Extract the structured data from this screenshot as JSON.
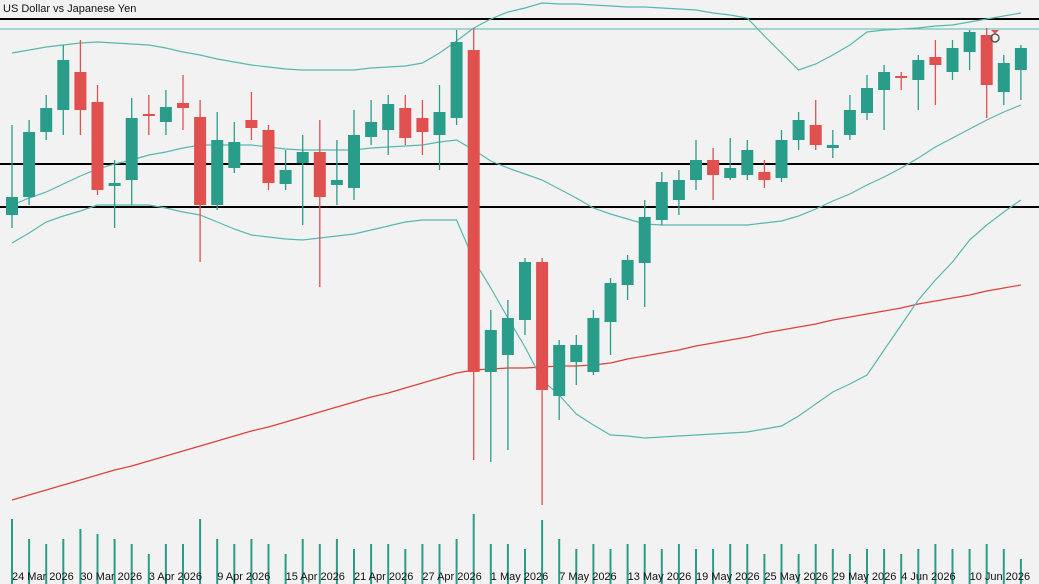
{
  "chart_data": {
    "type": "candlestick",
    "title": "US Dollar vs Japanese Yen",
    "categories": [
      "24 Mar 2026",
      null,
      null,
      null,
      "30 Mar 2026",
      null,
      null,
      null,
      "3 Apr 2026",
      null,
      null,
      null,
      "9 Apr 2026",
      null,
      null,
      null,
      "15 Apr 2026",
      null,
      null,
      null,
      "21 Apr 2026",
      null,
      null,
      null,
      "27 Apr 2026",
      null,
      null,
      null,
      "1 May 2026",
      null,
      null,
      null,
      "7 May 2026",
      null,
      null,
      null,
      "13 May 2026",
      null,
      null,
      null,
      "19 May 2026",
      null,
      null,
      null,
      "25 May 2026",
      null,
      null,
      null,
      "29 May 2026",
      null,
      null,
      null,
      "4 Jun 2026",
      null,
      null,
      null,
      "10 Jun 2026",
      null,
      null,
      null
    ],
    "open": [
      369,
      387,
      452,
      474,
      512,
      482,
      398,
      404,
      470,
      462,
      481,
      467,
      379,
      416,
      464,
      454,
      400,
      421,
      432,
      399,
      396,
      447,
      454,
      476,
      466,
      449,
      466,
      534,
      212,
      229,
      264,
      322,
      188,
      222,
      212,
      262,
      299,
      321,
      364,
      384,
      404,
      424,
      406,
      409,
      412,
      406,
      444,
      459,
      436,
      449,
      471,
      494,
      508,
      504,
      527,
      512,
      532,
      549,
      492,
      514
    ],
    "high": [
      459,
      464,
      489,
      539,
      544,
      499,
      424,
      486,
      489,
      494,
      509,
      484,
      472,
      462,
      492,
      459,
      434,
      449,
      464,
      444,
      474,
      484,
      489,
      489,
      484,
      499,
      554,
      556,
      274,
      284,
      326,
      326,
      244,
      249,
      274,
      306,
      329,
      384,
      412,
      414,
      444,
      436,
      446,
      444,
      424,
      454,
      472,
      484,
      454,
      489,
      509,
      519,
      512,
      529,
      544,
      544,
      554,
      556,
      529,
      539
    ],
    "low": [
      356,
      379,
      444,
      449,
      449,
      389,
      356,
      379,
      449,
      449,
      454,
      322,
      374,
      411,
      444,
      394,
      394,
      359,
      297,
      379,
      384,
      439,
      429,
      439,
      429,
      414,
      459,
      124,
      122,
      134,
      249,
      79,
      164,
      199,
      209,
      229,
      284,
      277,
      359,
      369,
      394,
      384,
      404,
      404,
      396,
      402,
      434,
      434,
      426,
      444,
      464,
      454,
      494,
      474,
      479,
      504,
      514,
      466,
      479,
      484
    ],
    "close": [
      387,
      452,
      476,
      524,
      474,
      394,
      401,
      466,
      468,
      477,
      476,
      379,
      444,
      442,
      456,
      401,
      414,
      432,
      387,
      404,
      449,
      462,
      480,
      446,
      452,
      472,
      542,
      212,
      254,
      266,
      322,
      194,
      239,
      239,
      266,
      301,
      324,
      367,
      402,
      404,
      424,
      409,
      416,
      434,
      404,
      444,
      464,
      439,
      439,
      474,
      496,
      512,
      506,
      524,
      519,
      536,
      552,
      499,
      521,
      536
    ],
    "up_color": "#2a9d8a",
    "down_color": "#e0504e",
    "ylim": [
      0,
      584
    ],
    "lines": [
      {
        "color": "#e0403a",
        "values": [
          84,
          89,
          94,
          99,
          104,
          109,
          114,
          118,
          123,
          128,
          133,
          138,
          143,
          148,
          153,
          157,
          162,
          167,
          172,
          177,
          182,
          187,
          191,
          196,
          201,
          206,
          211,
          214,
          215,
          216,
          216,
          217,
          218,
          218,
          219,
          221,
          225,
          228,
          231,
          234,
          238,
          241,
          244,
          247,
          251,
          254,
          257,
          260,
          264,
          267,
          270,
          273,
          276,
          280,
          283,
          286,
          289,
          293,
          296,
          299
        ]
      },
      {
        "color": "#58b8ae",
        "values": [
          531,
          534,
          537,
          539,
          541,
          542,
          541,
          540,
          539,
          536,
          532,
          529,
          525,
          522,
          519,
          517,
          515,
          514,
          514,
          514,
          514,
          516,
          517,
          518,
          521,
          531,
          543,
          556,
          565,
          572,
          576,
          581,
          580,
          580,
          579,
          578,
          577,
          577,
          576,
          575,
          574,
          571,
          569,
          566,
          548,
          531,
          514,
          520,
          529,
          539,
          552,
          554,
          555,
          556,
          558,
          559,
          562,
          565,
          568,
          571
        ]
      },
      {
        "color": "#58b8ae",
        "values": [
          379,
          386,
          392,
          400,
          408,
          415,
          420,
          424,
          429,
          432,
          436,
          439,
          439,
          439,
          439,
          437,
          435,
          434,
          434,
          434,
          434,
          436,
          437,
          438,
          439,
          442,
          444,
          434,
          423,
          416,
          410,
          404,
          395,
          386,
          376,
          370,
          365,
          360,
          359,
          359,
          359,
          359,
          359,
          359,
          361,
          363,
          368,
          375,
          383,
          390,
          399,
          407,
          416,
          426,
          437,
          446,
          455,
          464,
          472,
          479
        ]
      },
      {
        "color": "#58b8ae",
        "values": [
          341,
          351,
          362,
          368,
          373,
          379,
          379,
          379,
          379,
          376,
          372,
          369,
          362,
          355,
          349,
          347,
          345,
          344,
          346,
          348,
          350,
          354,
          358,
          362,
          364,
          364,
          364,
          324,
          296,
          266,
          237,
          204,
          189,
          170,
          159,
          149,
          148,
          146,
          147,
          148,
          149,
          150,
          151,
          152,
          155,
          158,
          168,
          180,
          192,
          200,
          209,
          234,
          259,
          284,
          304,
          322,
          344,
          359,
          372,
          384
        ]
      }
    ],
    "levels": [
      {
        "value": 565,
        "color": "#000000"
      },
      {
        "value": 555,
        "color": "#58b8ae"
      },
      {
        "value": 420,
        "color": "#000000"
      },
      {
        "value": 377,
        "color": "#000000"
      }
    ],
    "volume": {
      "color": "#2a9d8a",
      "ylim": [
        0,
        100
      ],
      "values": [
        65,
        45,
        40,
        45,
        55,
        50,
        45,
        40,
        30,
        40,
        40,
        65,
        45,
        40,
        45,
        40,
        30,
        45,
        40,
        45,
        35,
        40,
        40,
        35,
        40,
        40,
        45,
        70,
        40,
        40,
        35,
        64,
        45,
        35,
        40,
        35,
        40,
        40,
        35,
        40,
        35,
        35,
        40,
        40,
        30,
        40,
        30,
        40,
        35,
        30,
        35,
        35,
        30,
        35,
        40,
        35,
        35,
        40,
        35,
        25
      ]
    }
  }
}
